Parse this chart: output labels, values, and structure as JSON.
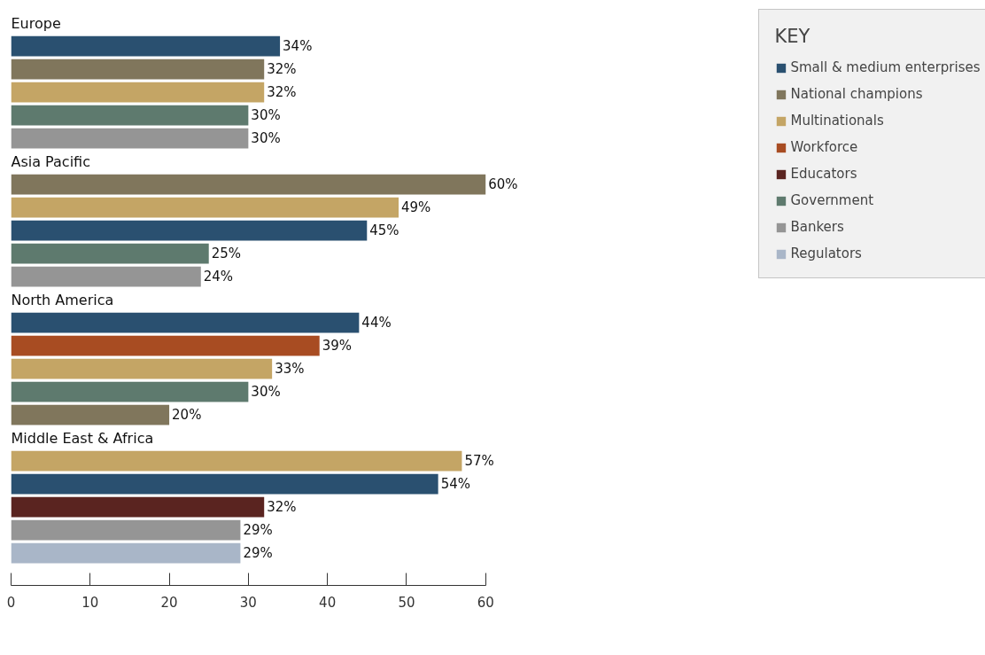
{
  "chart_data": {
    "type": "bar",
    "orientation": "horizontal",
    "stacked": true,
    "legend": "right",
    "legend_title": "KEY",
    "tick_labels": "x",
    "grid": false,
    "categories": [
      "Europe",
      null,
      null,
      null,
      null,
      null,
      "Asia Pacific",
      null,
      null,
      null,
      null,
      null,
      "North America",
      null,
      null,
      null,
      null,
      null,
      "Middle East & Africa",
      null,
      null,
      null,
      null,
      null
    ],
    "xlim": [
      0,
      60
    ],
    "xticks": [
      0,
      10,
      20,
      30,
      40,
      50,
      60
    ],
    "series": [
      {
        "name": "Small & medium enterprises",
        "color": "#2a5070",
        "values": [
          null,
          34,
          null,
          null,
          null,
          null,
          null,
          null,
          null,
          45,
          null,
          null,
          null,
          44,
          null,
          null,
          null,
          null,
          null,
          null,
          54,
          null,
          null,
          null
        ],
        "value_labels": [
          null,
          "34%",
          null,
          null,
          null,
          null,
          null,
          null,
          null,
          "45%",
          null,
          null,
          null,
          "44%",
          null,
          null,
          null,
          null,
          null,
          null,
          "54%",
          null,
          null,
          null
        ]
      },
      {
        "name": "National champions",
        "color": "#80765c",
        "values": [
          null,
          null,
          32,
          null,
          null,
          null,
          null,
          60,
          null,
          null,
          null,
          null,
          null,
          null,
          null,
          null,
          null,
          20,
          null,
          null,
          null,
          null,
          null,
          null
        ],
        "value_labels": [
          null,
          null,
          "32%",
          null,
          null,
          null,
          null,
          "60%",
          null,
          null,
          null,
          null,
          null,
          null,
          null,
          null,
          null,
          "20%",
          null,
          null,
          null,
          null,
          null,
          null
        ]
      },
      {
        "name": "Multinationals",
        "color": "#c4a565",
        "values": [
          null,
          null,
          null,
          32,
          null,
          null,
          null,
          null,
          49,
          null,
          null,
          null,
          null,
          null,
          null,
          33,
          null,
          null,
          null,
          57,
          null,
          null,
          null,
          null
        ],
        "value_labels": [
          null,
          null,
          null,
          "32%",
          null,
          null,
          null,
          null,
          "49%",
          null,
          null,
          null,
          null,
          null,
          null,
          "33%",
          null,
          null,
          null,
          "57%",
          null,
          null,
          null,
          null
        ]
      },
      {
        "name": "Workforce",
        "color": "#a84c22",
        "values": [
          null,
          null,
          null,
          null,
          null,
          null,
          null,
          null,
          null,
          null,
          null,
          null,
          null,
          null,
          39,
          null,
          null,
          null,
          null,
          null,
          null,
          null,
          null,
          null
        ],
        "value_labels": [
          null,
          null,
          null,
          null,
          null,
          null,
          null,
          null,
          null,
          null,
          null,
          null,
          null,
          null,
          "39%",
          null,
          null,
          null,
          null,
          null,
          null,
          null,
          null,
          null
        ]
      },
      {
        "name": "Educators",
        "color": "#5a2420",
        "values": [
          null,
          null,
          null,
          null,
          null,
          null,
          null,
          null,
          null,
          null,
          null,
          null,
          null,
          null,
          null,
          null,
          null,
          null,
          null,
          null,
          null,
          32,
          null,
          null
        ],
        "value_labels": [
          null,
          null,
          null,
          null,
          null,
          null,
          null,
          null,
          null,
          null,
          null,
          null,
          null,
          null,
          null,
          null,
          null,
          null,
          null,
          null,
          null,
          "32%",
          null,
          null
        ]
      },
      {
        "name": "Government",
        "color": "#5e7a6e",
        "values": [
          null,
          null,
          null,
          null,
          30,
          null,
          null,
          null,
          null,
          null,
          25,
          null,
          null,
          null,
          null,
          null,
          30,
          null,
          null,
          null,
          null,
          null,
          null,
          null
        ],
        "value_labels": [
          null,
          null,
          null,
          null,
          "30%",
          null,
          null,
          null,
          null,
          null,
          "25%",
          null,
          null,
          null,
          null,
          null,
          "30%",
          null,
          null,
          null,
          null,
          null,
          null,
          null
        ]
      },
      {
        "name": "Bankers",
        "color": "#959595",
        "values": [
          null,
          null,
          null,
          null,
          null,
          30,
          null,
          null,
          null,
          null,
          null,
          24,
          null,
          null,
          null,
          null,
          null,
          null,
          null,
          null,
          null,
          null,
          29,
          null
        ],
        "value_labels": [
          null,
          null,
          null,
          null,
          null,
          "30%",
          null,
          null,
          null,
          null,
          null,
          "24%",
          null,
          null,
          null,
          null,
          null,
          null,
          null,
          null,
          null,
          null,
          "29%",
          null
        ]
      },
      {
        "name": "Regulators",
        "color": "#a9b6c8",
        "values": [
          null,
          null,
          null,
          null,
          null,
          null,
          null,
          null,
          null,
          null,
          null,
          null,
          null,
          null,
          null,
          null,
          null,
          null,
          null,
          null,
          null,
          null,
          null,
          29
        ],
        "value_labels": [
          null,
          null,
          null,
          null,
          null,
          null,
          null,
          null,
          null,
          null,
          null,
          null,
          null,
          null,
          null,
          null,
          null,
          null,
          null,
          null,
          null,
          null,
          null,
          "29%"
        ]
      }
    ]
  }
}
